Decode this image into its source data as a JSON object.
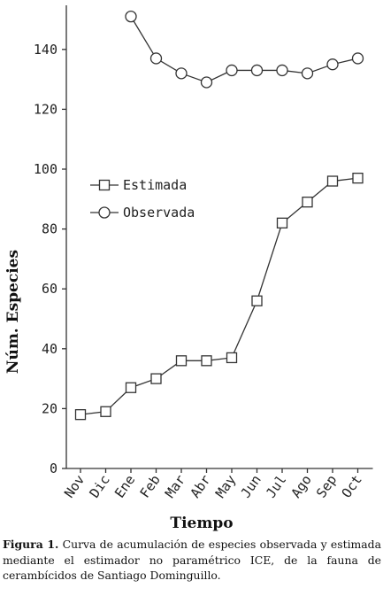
{
  "chart_data": {
    "type": "line",
    "categories": [
      "Nov",
      "Dic",
      "Ene",
      "Feb",
      "Mar",
      "Abr",
      "May",
      "Jun",
      "Jul",
      "Ago",
      "Sep",
      "Oct"
    ],
    "series": [
      {
        "name": "Estimada",
        "marker": "square",
        "values": [
          18,
          19,
          27,
          30,
          36,
          36,
          37,
          56,
          82,
          89,
          96,
          97
        ]
      },
      {
        "name": "Observada",
        "marker": "circle",
        "values": [
          null,
          null,
          151,
          137,
          132,
          129,
          133,
          133,
          133,
          132,
          135,
          137
        ]
      }
    ],
    "xlabel": "Tiempo",
    "ylabel": "Núm. Especies",
    "ylim": [
      0,
      155
    ],
    "yticks": [
      0,
      20,
      40,
      60,
      80,
      100,
      120,
      140
    ],
    "grid": false,
    "legend_position": "upper-left-middle",
    "line_color": "#333333"
  },
  "caption": {
    "label": "Figura 1.",
    "text": "Curva de acumulación de especies observada y estimada mediante el estimador no paramétrico ICE, de la fauna de cerambícidos de Santiago Dominguillo."
  }
}
